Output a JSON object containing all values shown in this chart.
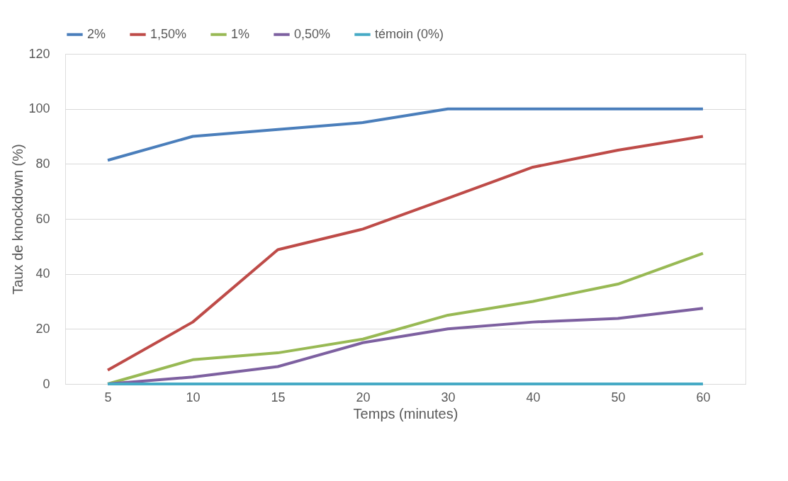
{
  "chart_data": {
    "type": "line",
    "xlabel": "Temps (minutes)",
    "ylabel": "Taux de knockdown (%)",
    "categories": [
      "5",
      "10",
      "15",
      "20",
      "30",
      "40",
      "50",
      "60"
    ],
    "ylim": [
      0,
      120
    ],
    "yticks": [
      0,
      20,
      40,
      60,
      80,
      100,
      120
    ],
    "grid": "y",
    "legend": "top",
    "marker": "none",
    "line_style": "solid",
    "series": [
      {
        "name": "2%",
        "color": "#4a7ebb",
        "values": [
          81.3,
          90,
          92.5,
          95,
          100,
          100,
          100,
          100
        ]
      },
      {
        "name": "1,50%",
        "color": "#be4b48",
        "values": [
          5,
          22.5,
          48.8,
          56.3,
          67.5,
          78.8,
          85,
          90
        ]
      },
      {
        "name": "1%",
        "color": "#98b954",
        "values": [
          0,
          8.8,
          11.3,
          16.3,
          25,
          30,
          36.3,
          47.5
        ]
      },
      {
        "name": "0,50%",
        "color": "#7d60a0",
        "values": [
          0,
          2.5,
          6.3,
          15,
          20,
          22.5,
          23.8,
          27.5
        ]
      },
      {
        "name": "témoin (0%)",
        "color": "#46aac5",
        "values": [
          0,
          0,
          0,
          0,
          0,
          0,
          0,
          0
        ]
      }
    ]
  }
}
